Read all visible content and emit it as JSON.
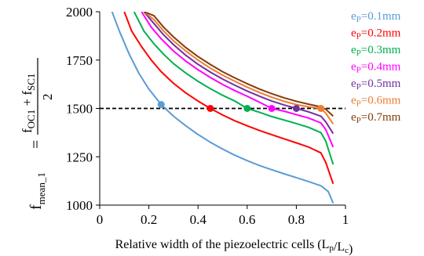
{
  "chart_data": {
    "type": "line",
    "xlabel": "Relative width of the piezoelectric cells (Lp/Lc)",
    "ylabel": {
      "main": "f",
      "main_sub": "mean_1",
      "equals": "=",
      "numerator_a": "f",
      "numerator_a_sub": "OC1",
      "plus": "+",
      "numerator_b": "f",
      "numerator_b_sub": "SC1",
      "denominator": "2"
    },
    "xlim": [
      0,
      1
    ],
    "ylim": [
      1000,
      2000
    ],
    "xticks": [
      0,
      0.2,
      0.4,
      0.6,
      0.8,
      1
    ],
    "xtick_labels": [
      "0",
      "0.2",
      "0.4",
      "0.6",
      "0.8",
      "1"
    ],
    "yticks": [
      1000,
      1250,
      1500,
      1750,
      2000
    ],
    "ytick_labels": [
      "1000",
      "1250",
      "1500",
      "1750",
      "2000"
    ],
    "grid": false,
    "legend_position": "right",
    "reference_line": {
      "y": 1500,
      "style": "dashed",
      "color": "#000000"
    },
    "series": [
      {
        "name": "ep=0.1mm",
        "legend_prefix": "e",
        "legend_sub": "P",
        "legend_suffix": "=0.1mm",
        "color": "#5b9bd5",
        "x": [
          0.05,
          0.08,
          0.12,
          0.16,
          0.2,
          0.25,
          0.3,
          0.35,
          0.4,
          0.45,
          0.5,
          0.55,
          0.6,
          0.65,
          0.7,
          0.75,
          0.8,
          0.85,
          0.9,
          0.93,
          0.95
        ],
        "y": [
          2000,
          1900,
          1780,
          1680,
          1600,
          1520,
          1460,
          1410,
          1365,
          1325,
          1290,
          1258,
          1230,
          1205,
          1183,
          1162,
          1142,
          1122,
          1100,
          1070,
          1010
        ],
        "marker": {
          "x": 0.25,
          "y": 1520
        }
      },
      {
        "name": "ep=0.2mm",
        "legend_prefix": "e",
        "legend_sub": "P",
        "legend_suffix": "=0.2mm",
        "color": "#ff0000",
        "x": [
          0.1,
          0.13,
          0.17,
          0.21,
          0.25,
          0.3,
          0.35,
          0.4,
          0.45,
          0.5,
          0.55,
          0.6,
          0.65,
          0.7,
          0.75,
          0.8,
          0.85,
          0.9,
          0.92,
          0.95
        ],
        "y": [
          2000,
          1900,
          1820,
          1750,
          1690,
          1630,
          1580,
          1538,
          1500,
          1466,
          1436,
          1410,
          1386,
          1364,
          1343,
          1322,
          1300,
          1270,
          1220,
          1110
        ],
        "marker": {
          "x": 0.45,
          "y": 1500
        }
      },
      {
        "name": "ep=0.3mm",
        "legend_prefix": "e",
        "legend_sub": "P",
        "legend_suffix": "=0.3mm",
        "color": "#00b050",
        "x": [
          0.14,
          0.18,
          0.22,
          0.26,
          0.3,
          0.35,
          0.4,
          0.45,
          0.5,
          0.55,
          0.6,
          0.65,
          0.7,
          0.75,
          0.8,
          0.85,
          0.9,
          0.92,
          0.95
        ],
        "y": [
          2000,
          1900,
          1835,
          1780,
          1732,
          1683,
          1640,
          1602,
          1568,
          1538,
          1500,
          1480,
          1458,
          1440,
          1422,
          1402,
          1375,
          1330,
          1210
        ],
        "marker": {
          "x": 0.6,
          "y": 1500
        }
      },
      {
        "name": "ep=0.4mm",
        "legend_prefix": "e",
        "legend_sub": "P",
        "legend_suffix": "=0.4mm",
        "color": "#ff00ff",
        "x": [
          0.17,
          0.21,
          0.25,
          0.3,
          0.35,
          0.4,
          0.45,
          0.5,
          0.55,
          0.6,
          0.65,
          0.7,
          0.75,
          0.8,
          0.85,
          0.9,
          0.92,
          0.95
        ],
        "y": [
          2000,
          1920,
          1860,
          1797,
          1745,
          1700,
          1660,
          1624,
          1592,
          1563,
          1532,
          1500,
          1486,
          1468,
          1450,
          1425,
          1390,
          1300
        ],
        "marker": {
          "x": 0.7,
          "y": 1500
        }
      },
      {
        "name": "ep=0.5mm",
        "legend_prefix": "e",
        "legend_sub": "P",
        "legend_suffix": "=0.5mm",
        "color": "#7030a0",
        "x": [
          0.18,
          0.22,
          0.26,
          0.3,
          0.35,
          0.4,
          0.45,
          0.5,
          0.55,
          0.6,
          0.65,
          0.7,
          0.75,
          0.8,
          0.85,
          0.9,
          0.92,
          0.95
        ],
        "y": [
          2000,
          1940,
          1880,
          1830,
          1775,
          1728,
          1688,
          1652,
          1620,
          1590,
          1563,
          1538,
          1518,
          1500,
          1482,
          1460,
          1430,
          1370
        ],
        "marker": {
          "x": 0.8,
          "y": 1500
        }
      },
      {
        "name": "ep=0.6mm",
        "legend_prefix": "e",
        "legend_sub": "P",
        "legend_suffix": "=0.6mm",
        "color": "#ed7d31",
        "x": [
          0.18,
          0.22,
          0.26,
          0.3,
          0.35,
          0.4,
          0.45,
          0.5,
          0.55,
          0.6,
          0.65,
          0.7,
          0.75,
          0.8,
          0.85,
          0.9,
          0.92,
          0.95
        ],
        "y": [
          2000,
          1960,
          1900,
          1850,
          1797,
          1750,
          1708,
          1672,
          1640,
          1610,
          1582,
          1558,
          1537,
          1520,
          1508,
          1500,
          1475,
          1420
        ],
        "marker": {
          "x": 0.9,
          "y": 1500
        }
      },
      {
        "name": "ep=0.7mm",
        "legend_prefix": "e",
        "legend_sub": "P",
        "legend_suffix": "=0.7mm",
        "color": "#843c0c",
        "x": [
          0.18,
          0.22,
          0.26,
          0.3,
          0.35,
          0.4,
          0.45,
          0.5,
          0.55,
          0.6,
          0.65,
          0.7,
          0.75,
          0.8,
          0.85,
          0.9,
          0.92,
          0.95
        ],
        "y": [
          2000,
          1980,
          1920,
          1870,
          1815,
          1768,
          1727,
          1690,
          1658,
          1628,
          1600,
          1576,
          1555,
          1537,
          1522,
          1508,
          1495,
          1460
        ],
        "marker": null
      }
    ]
  }
}
